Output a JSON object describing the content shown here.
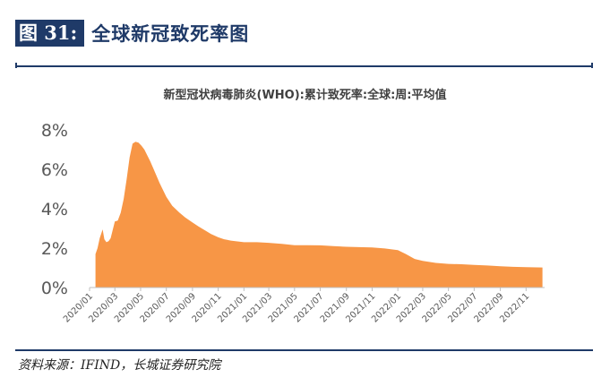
{
  "figure": {
    "label": "图 31:",
    "title": "全球新冠致死率图"
  },
  "source": "资料来源：IFIND，长城证券研究院",
  "colors": {
    "header_bg": "#1f3a68",
    "area_fill": "#f79646",
    "axis_text": "#595959"
  },
  "chart_data": {
    "type": "area",
    "title": "新型冠状病毒肺炎(WHO):累计致死率:全球:周:平均值",
    "xlabel": "",
    "ylabel": "",
    "y_tick_labels": [
      "0%",
      "2%",
      "4%",
      "6%",
      "8%"
    ],
    "ylim": [
      0,
      8
    ],
    "y_unit": "%",
    "grid": false,
    "legend": "none",
    "x_tick_labels": [
      "2020/01",
      "2020/03",
      "2020/05",
      "2020/07",
      "2020/09",
      "2020/11",
      "2021/01",
      "2021/03",
      "2021/05",
      "2021/07",
      "2021/09",
      "2021/11",
      "2022/01",
      "2022/03",
      "2022/05",
      "2022/07",
      "2022/09",
      "2022/11"
    ],
    "x": [
      "2020-01-15",
      "2020-01-20",
      "2020-01-25",
      "2020-02-01",
      "2020-02-05",
      "2020-02-10",
      "2020-02-15",
      "2020-02-20",
      "2020-03-01",
      "2020-03-08",
      "2020-03-15",
      "2020-03-22",
      "2020-03-29",
      "2020-04-05",
      "2020-04-12",
      "2020-04-19",
      "2020-04-26",
      "2020-05-03",
      "2020-05-10",
      "2020-05-17",
      "2020-05-24",
      "2020-06-01",
      "2020-06-15",
      "2020-07-01",
      "2020-07-15",
      "2020-08-01",
      "2020-08-15",
      "2020-09-01",
      "2020-09-15",
      "2020-10-01",
      "2020-10-15",
      "2020-11-01",
      "2020-11-15",
      "2020-12-01",
      "2021-01-01",
      "2021-02-01",
      "2021-03-01",
      "2021-04-01",
      "2021-05-01",
      "2021-06-01",
      "2021-07-01",
      "2021-08-01",
      "2021-09-01",
      "2021-10-01",
      "2021-11-01",
      "2021-12-01",
      "2022-01-01",
      "2022-01-20",
      "2022-02-10",
      "2022-03-01",
      "2022-04-01",
      "2022-05-01",
      "2022-06-01",
      "2022-07-01",
      "2022-08-01",
      "2022-09-01",
      "2022-10-01",
      "2022-11-01",
      "2022-12-10"
    ],
    "values": [
      1.7,
      2.0,
      2.5,
      2.95,
      2.45,
      2.3,
      2.35,
      2.5,
      3.35,
      3.4,
      3.8,
      4.5,
      5.5,
      6.6,
      7.3,
      7.4,
      7.35,
      7.2,
      7.0,
      6.7,
      6.4,
      6.0,
      5.3,
      4.6,
      4.15,
      3.8,
      3.55,
      3.3,
      3.1,
      2.9,
      2.72,
      2.55,
      2.45,
      2.38,
      2.3,
      2.3,
      2.27,
      2.22,
      2.15,
      2.15,
      2.14,
      2.1,
      2.07,
      2.05,
      2.03,
      1.98,
      1.9,
      1.7,
      1.45,
      1.35,
      1.25,
      1.2,
      1.18,
      1.15,
      1.12,
      1.08,
      1.05,
      1.03,
      1.02
    ]
  }
}
